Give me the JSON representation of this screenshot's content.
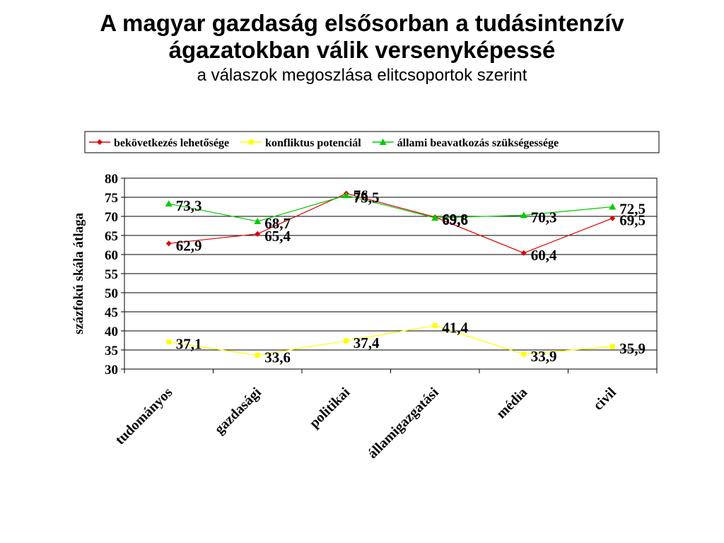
{
  "title_line1": "A magyar gazdaság elsősorban a tudásintenzív",
  "title_line2": "ágazatokban válik versenyképessé",
  "subtitle": "a válaszok megoszlása elitcsoportok szerint",
  "chart_data": {
    "type": "line",
    "categories": [
      "tudományos",
      "gazdasági",
      "politikai",
      "államigazgatási",
      "média",
      "civil"
    ],
    "ylabel": "százfokú skála átlaga",
    "xlabel": "",
    "ylim": [
      30,
      80
    ],
    "ytick_step": 5,
    "grid": true,
    "legend_position": "top",
    "series": [
      {
        "name": "bekövetkezés lehetősége",
        "color": "#dd0000",
        "marker": "diamond",
        "values": [
          62.9,
          65.4,
          76,
          69.8,
          60.4,
          69.5
        ],
        "labels": [
          "62,9",
          "65,4",
          "76",
          "69,8",
          "60,4",
          "69,5"
        ]
      },
      {
        "name": "konfliktus potenciál",
        "color": "#ffff00",
        "marker": "square",
        "values": [
          37.1,
          33.6,
          37.4,
          41.4,
          33.9,
          35.9
        ],
        "labels": [
          "37,1",
          "33,6",
          "37,4",
          "41,4",
          "33,9",
          "35,9"
        ]
      },
      {
        "name": "állami beavatkozás szükségessége",
        "color": "#00cc00",
        "marker": "triangle",
        "values": [
          73.3,
          68.7,
          75.5,
          69.6,
          70.3,
          72.5
        ],
        "labels": [
          "73,3",
          "68,7",
          "75,5",
          "69,6",
          "70,3",
          "72,5"
        ]
      }
    ]
  }
}
